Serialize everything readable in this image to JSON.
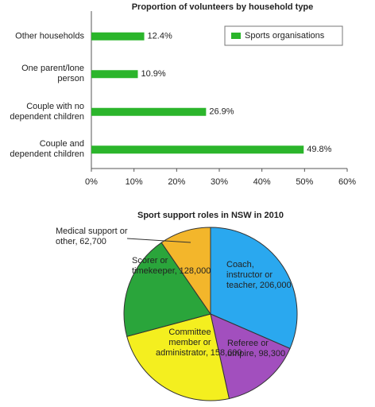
{
  "chart_data": [
    {
      "type": "bar",
      "orientation": "horizontal",
      "title": "Proportion of volunteers by household type",
      "categories": [
        "Other households",
        "One parent/lone person",
        "Couple with no dependent children",
        "Couple and dependent children"
      ],
      "series": [
        {
          "name": "Sports organisations",
          "color": "#2bb52b",
          "values": [
            12.4,
            10.9,
            26.9,
            49.8
          ],
          "value_labels": [
            "12.4%",
            "10.9%",
            "26.9%",
            "49.8%"
          ]
        }
      ],
      "xlim": [
        0,
        60
      ],
      "xticks": [
        {
          "value": 0,
          "label": "0%"
        },
        {
          "value": 10,
          "label": "10%"
        },
        {
          "value": 20,
          "label": "20%"
        },
        {
          "value": 30,
          "label": "30%"
        },
        {
          "value": 40,
          "label": "40%"
        },
        {
          "value": 50,
          "label": "50%"
        },
        {
          "value": 60,
          "label": "60%"
        }
      ],
      "legend": "upper right"
    },
    {
      "type": "pie",
      "title": "Sport support roles in NSW in 2010",
      "categories": [
        "Coach, instructor or teacher,",
        "Referee or umpire,",
        "Committee member or administrator,",
        "Scorer or timekeeper,",
        "Medical support or other,"
      ],
      "values": [
        206000,
        98300,
        158600,
        128000,
        62700
      ],
      "value_labels": [
        "206,000",
        "98,300",
        "158,600",
        "128,000",
        "62,700"
      ],
      "colors": [
        "#2aa8ef",
        "#a24fbe",
        "#f4ef1f",
        "#2aa53b",
        "#f3b62b"
      ]
    }
  ]
}
